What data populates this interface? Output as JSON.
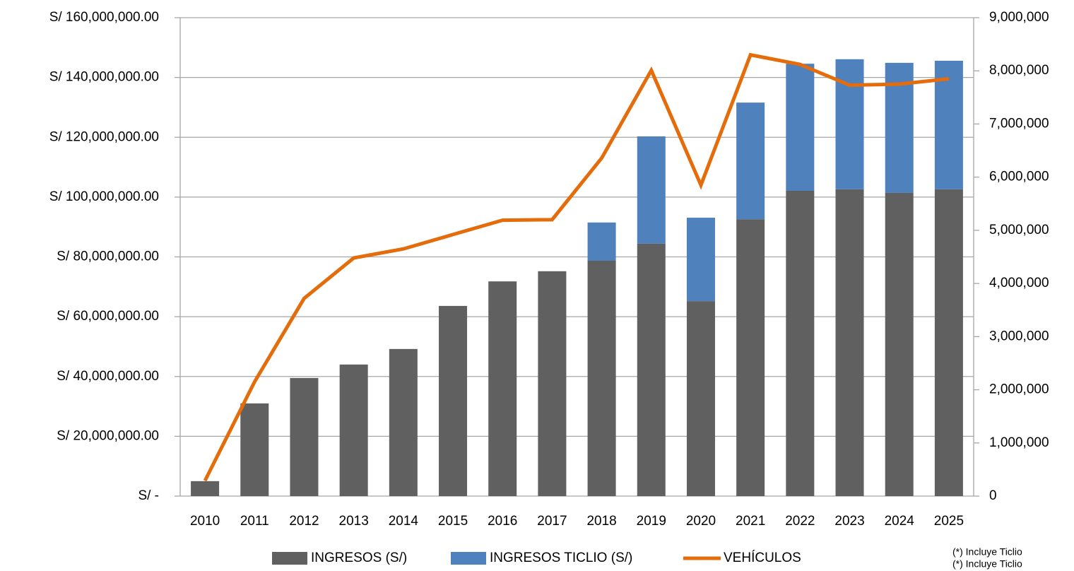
{
  "chart_data": {
    "type": "bar",
    "stacked": true,
    "categories": [
      "2010",
      "2011",
      "2012",
      "2013",
      "2014",
      "2015",
      "2016",
      "2017",
      "2018",
      "2019",
      "2020",
      "2021",
      "2022",
      "2023",
      "2024",
      "2025"
    ],
    "series": [
      {
        "name": "INGRESOS (S/)",
        "type": "bar",
        "axis": "y",
        "color": "#606060",
        "values": [
          5000000,
          31000000,
          39500000,
          44000000,
          49200000,
          63600000,
          71800000,
          75200000,
          78700000,
          84400000,
          65200000,
          92600000,
          102100000,
          102600000,
          101400000,
          102600000
        ]
      },
      {
        "name": "INGRESOS TICLIO (S/)",
        "type": "bar",
        "axis": "y",
        "color": "#4f81bd",
        "values": [
          null,
          null,
          null,
          null,
          null,
          null,
          null,
          null,
          12800000,
          35900000,
          27900000,
          39000000,
          42500000,
          43500000,
          43500000,
          43000000
        ]
      },
      {
        "name": "VEHÍCULOS",
        "type": "line",
        "axis": "y2",
        "color": "#e46c0a",
        "values": [
          290000,
          2150000,
          3720000,
          4480000,
          4650000,
          4920000,
          5190000,
          5200000,
          6360000,
          8010000,
          5850000,
          8300000,
          8120000,
          7730000,
          7750000,
          7850000
        ]
      }
    ],
    "ylim": [
      0,
      160000000
    ],
    "yticks": [
      {
        "value": 0,
        "label": "S/  -"
      },
      {
        "value": 20000000,
        "label": "S/  20,000,000.00"
      },
      {
        "value": 40000000,
        "label": "S/  40,000,000.00"
      },
      {
        "value": 60000000,
        "label": "S/  60,000,000.00"
      },
      {
        "value": 80000000,
        "label": "S/  80,000,000.00"
      },
      {
        "value": 100000000,
        "label": "S/  100,000,000.00"
      },
      {
        "value": 120000000,
        "label": "S/  120,000,000.00"
      },
      {
        "value": 140000000,
        "label": "S/  140,000,000.00"
      },
      {
        "value": 160000000,
        "label": "S/  160,000,000.00"
      }
    ],
    "y2lim": [
      0,
      9000000
    ],
    "y2ticks": [
      0,
      {
        "value": 1000000,
        "label": "1,000,000"
      },
      {
        "value": 2000000,
        "label": "2,000,000"
      },
      {
        "value": 3000000,
        "label": "3,000,000"
      },
      {
        "value": 4000000,
        "label": "4,000,000"
      },
      {
        "value": 5000000,
        "label": "5,000,000"
      },
      {
        "value": 6000000,
        "label": "6,000,000"
      },
      {
        "value": 7000000,
        "label": "7,000,000"
      },
      {
        "value": 8000000,
        "label": "8,000,000"
      },
      {
        "value": 9000000,
        "label": "9,000,000"
      }
    ],
    "grid": true,
    "legend": "bottom",
    "notes": [
      "(*) Incluye Ticlio",
      "(*) Incluye Ticlio"
    ]
  }
}
